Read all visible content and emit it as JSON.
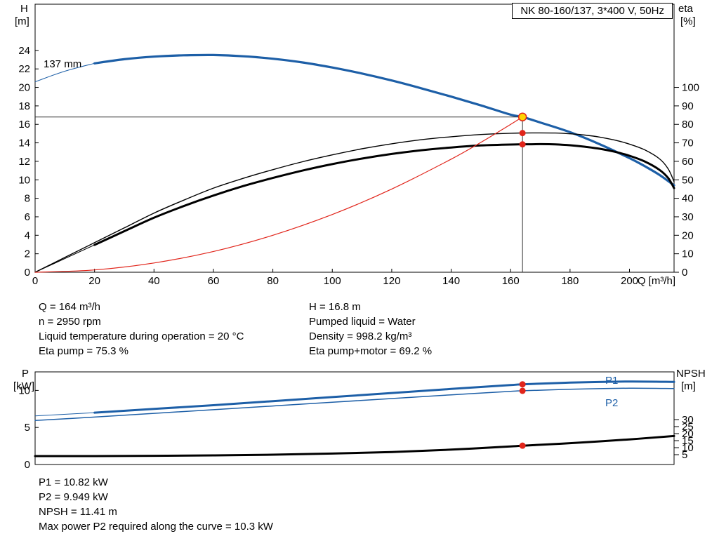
{
  "colors": {
    "blue": "#1d5fa7",
    "red": "#e1251b",
    "yellow": "#ffd400",
    "black": "#000000"
  },
  "title_box": {
    "text": "NK 80-160/137, 3*400 V, 50Hz"
  },
  "impeller_label": "137 mm",
  "axes_labels": {
    "top_left_1": "H",
    "top_left_2": "[m]",
    "top_right_1": "eta",
    "top_right_2": "[%]",
    "bottom_left_1": "P",
    "bottom_left_2": "[kW]",
    "bottom_right_1": "NPSH",
    "bottom_right_2": "[m]"
  },
  "curve_labels": {
    "p1": "P1",
    "p2": "P2"
  },
  "info": {
    "left": [
      "Q = 164 m³/h",
      "n = 2950 rpm",
      "Liquid temperature during operation = 20 °C",
      "Eta pump = 75.3 %"
    ],
    "right": [
      "H = 16.8 m",
      "Pumped liquid = Water",
      "Density = 998.2 kg/m³",
      "Eta pump+motor = 69.2 %"
    ]
  },
  "results": [
    "P1 = 10.82 kW",
    "P2 = 9.949 kW",
    "NPSH = 11.41 m",
    "Max power P2 required along the curve = 10.3 kW"
  ],
  "chart_data": [
    {
      "type": "line",
      "title": "NK 80-160/137, 3*400 V, 50Hz",
      "xlabel": "Q [m³/h]",
      "xlim": [
        0,
        215
      ],
      "x_ticks": [
        0,
        20,
        40,
        60,
        80,
        100,
        120,
        140,
        160,
        180,
        200
      ],
      "y_left": {
        "label": "H [m]",
        "lim": [
          0,
          29
        ],
        "ticks": [
          0,
          2,
          4,
          6,
          8,
          10,
          12,
          14,
          16,
          18,
          20,
          22,
          24
        ]
      },
      "y_right": {
        "label": "eta [%]",
        "lim": [
          0,
          110
        ],
        "ticks": [
          0,
          10,
          20,
          30,
          40,
          50,
          60,
          70,
          80,
          90,
          100
        ]
      },
      "duty_point": {
        "Q": 164,
        "H": 16.8
      },
      "series": [
        {
          "name": "head-137mm",
          "label": "137 mm",
          "axis": "H",
          "color": "blue",
          "width": 3.2,
          "lead_thin": 20,
          "points": [
            [
              0,
              20.6
            ],
            [
              5,
              21.2
            ],
            [
              10,
              21.75
            ],
            [
              15,
              22.2
            ],
            [
              20,
              22.6
            ],
            [
              30,
              23.05
            ],
            [
              40,
              23.33
            ],
            [
              50,
              23.47
            ],
            [
              60,
              23.5
            ],
            [
              70,
              23.37
            ],
            [
              80,
              23.1
            ],
            [
              90,
              22.7
            ],
            [
              100,
              22.15
            ],
            [
              110,
              21.5
            ],
            [
              120,
              20.75
            ],
            [
              130,
              19.9
            ],
            [
              140,
              19.0
            ],
            [
              150,
              18.05
            ],
            [
              160,
              17.05
            ],
            [
              164,
              16.8
            ],
            [
              170,
              16.2
            ],
            [
              180,
              15.15
            ],
            [
              190,
              13.85
            ],
            [
              200,
              12.35
            ],
            [
              205,
              11.5
            ],
            [
              210,
              10.55
            ],
            [
              215,
              9.4
            ]
          ]
        },
        {
          "name": "eta-pump",
          "axis": "eta",
          "color": "black",
          "width": 1.4,
          "points": [
            [
              0,
              0
            ],
            [
              10,
              8
            ],
            [
              20,
              16
            ],
            [
              30,
              24
            ],
            [
              40,
              32
            ],
            [
              50,
              39
            ],
            [
              60,
              45.5
            ],
            [
              70,
              50.8
            ],
            [
              80,
              55.5
            ],
            [
              90,
              59.8
            ],
            [
              100,
              63.5
            ],
            [
              110,
              66.8
            ],
            [
              120,
              69.5
            ],
            [
              130,
              71.7
            ],
            [
              140,
              73.3
            ],
            [
              150,
              74.5
            ],
            [
              160,
              75.2
            ],
            [
              164,
              75.3
            ],
            [
              170,
              75.4
            ],
            [
              175,
              75.3
            ],
            [
              180,
              74.9
            ],
            [
              185,
              74.2
            ],
            [
              190,
              73.1
            ],
            [
              195,
              71.5
            ],
            [
              200,
              69.3
            ],
            [
              205,
              66.3
            ],
            [
              210,
              61.5
            ],
            [
              213,
              56
            ],
            [
              215,
              49
            ]
          ]
        },
        {
          "name": "eta-pump-motor",
          "axis": "eta",
          "color": "black",
          "width": 3,
          "lead_thin": 20,
          "points": [
            [
              0,
              0
            ],
            [
              10,
              7.4
            ],
            [
              20,
              14.8
            ],
            [
              30,
              22.2
            ],
            [
              40,
              29.5
            ],
            [
              50,
              35.8
            ],
            [
              60,
              41.5
            ],
            [
              70,
              46.6
            ],
            [
              80,
              51
            ],
            [
              90,
              55
            ],
            [
              100,
              58.5
            ],
            [
              110,
              61.5
            ],
            [
              120,
              64
            ],
            [
              130,
              66
            ],
            [
              140,
              67.5
            ],
            [
              150,
              68.6
            ],
            [
              160,
              69.1
            ],
            [
              164,
              69.2
            ],
            [
              170,
              69.3
            ],
            [
              175,
              69.2
            ],
            [
              180,
              68.7
            ],
            [
              185,
              67.9
            ],
            [
              190,
              66.8
            ],
            [
              195,
              65.2
            ],
            [
              200,
              63
            ],
            [
              205,
              60
            ],
            [
              210,
              55.5
            ],
            [
              213,
              51
            ],
            [
              215,
              45.5
            ]
          ]
        },
        {
          "name": "system-curve",
          "axis": "H",
          "color": "red",
          "width": 1.2,
          "points": [
            [
              0,
              0
            ],
            [
              20,
              0.25
            ],
            [
              40,
              1.0
            ],
            [
              60,
              2.25
            ],
            [
              80,
              4.0
            ],
            [
              100,
              6.25
            ],
            [
              120,
              9.0
            ],
            [
              140,
              12.24
            ],
            [
              150,
              14.05
            ],
            [
              158,
              15.6
            ],
            [
              164,
              16.8
            ]
          ]
        }
      ],
      "markers": [
        {
          "name": "duty-point",
          "q": 164,
          "axis": "H",
          "v": 16.8,
          "style": "duty"
        },
        {
          "name": "eta-pump-dot",
          "q": 164,
          "axis": "eta",
          "v": 75.3,
          "style": "dot"
        },
        {
          "name": "eta-pump-motor-dot",
          "q": 164,
          "axis": "eta",
          "v": 69.2,
          "style": "dot"
        }
      ]
    },
    {
      "type": "line",
      "xlabel": "",
      "xlim": [
        0,
        215
      ],
      "x_ticks": [],
      "y_left": {
        "label": "P [kW]",
        "lim": [
          0,
          12.5
        ],
        "ticks": [
          0,
          5,
          10
        ]
      },
      "y_right": {
        "label": "NPSH [m]",
        "lim": [
          0,
          30
        ],
        "ticks": [
          5,
          10,
          15,
          20,
          25,
          30
        ]
      },
      "series": [
        {
          "name": "p1",
          "label": "P1",
          "axis": "P",
          "color": "blue",
          "width": 3,
          "lead_thin": 20,
          "points": [
            [
              0,
              6.55
            ],
            [
              20,
              7.0
            ],
            [
              40,
              7.5
            ],
            [
              60,
              8.0
            ],
            [
              80,
              8.55
            ],
            [
              100,
              9.1
            ],
            [
              120,
              9.65
            ],
            [
              140,
              10.2
            ],
            [
              160,
              10.72
            ],
            [
              164,
              10.82
            ],
            [
              180,
              11.05
            ],
            [
              200,
              11.2
            ],
            [
              215,
              11.15
            ]
          ]
        },
        {
          "name": "p2",
          "label": "P2",
          "axis": "P",
          "color": "blue",
          "width": 1.5,
          "points": [
            [
              0,
              5.95
            ],
            [
              20,
              6.4
            ],
            [
              40,
              6.9
            ],
            [
              60,
              7.4
            ],
            [
              80,
              7.9
            ],
            [
              100,
              8.4
            ],
            [
              120,
              8.9
            ],
            [
              140,
              9.4
            ],
            [
              160,
              9.87
            ],
            [
              164,
              9.95
            ],
            [
              180,
              10.15
            ],
            [
              200,
              10.3
            ],
            [
              215,
              10.25
            ]
          ]
        },
        {
          "name": "npsh",
          "axis": "NPSH",
          "color": "black",
          "width": 3,
          "points": [
            [
              0,
              4.0
            ],
            [
              20,
              4.0
            ],
            [
              40,
              4.2
            ],
            [
              60,
              4.5
            ],
            [
              80,
              5.0
            ],
            [
              100,
              5.8
            ],
            [
              120,
              6.9
            ],
            [
              140,
              8.6
            ],
            [
              160,
              10.9
            ],
            [
              164,
              11.41
            ],
            [
              180,
              13.2
            ],
            [
              200,
              15.9
            ],
            [
              215,
              18.3
            ]
          ]
        }
      ],
      "markers": [
        {
          "name": "p1-dot",
          "q": 164,
          "axis": "P",
          "v": 10.82,
          "style": "dot"
        },
        {
          "name": "p2-dot",
          "q": 164,
          "axis": "P",
          "v": 9.949,
          "style": "dot"
        },
        {
          "name": "npsh-dot",
          "q": 164,
          "axis": "NPSH",
          "v": 11.41,
          "style": "dot"
        }
      ]
    }
  ]
}
